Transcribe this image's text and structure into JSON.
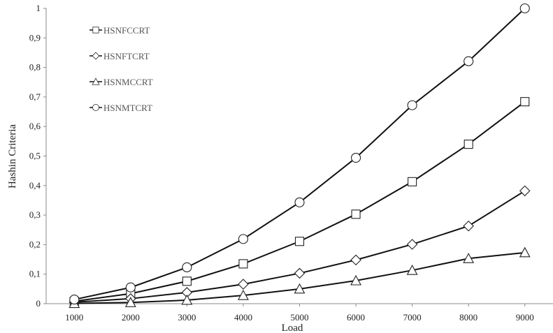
{
  "chart_data": {
    "type": "line",
    "xlabel": "Load",
    "ylabel": "Hashin Criteria",
    "x": [
      1000,
      2000,
      3000,
      4000,
      5000,
      6000,
      7000,
      8000,
      9000
    ],
    "xlim": [
      500,
      9500
    ],
    "ylim": [
      0,
      1
    ],
    "xticks": [
      "1000",
      "2000",
      "3000",
      "4000",
      "5000",
      "6000",
      "7000",
      "8000",
      "9000"
    ],
    "yticks": [
      "0",
      "0,1",
      "0,2",
      "0,3",
      "0,4",
      "0,5",
      "0,6",
      "0,7",
      "0,8",
      "0,9",
      "1"
    ],
    "legend_position": "top-left",
    "grid": false,
    "line_color": "#111111",
    "series": [
      {
        "name": "HSNFCCRT",
        "marker": "square",
        "values": [
          0.008,
          0.034,
          0.076,
          0.135,
          0.211,
          0.303,
          0.413,
          0.54,
          0.684
        ]
      },
      {
        "name": "HSNFTCRT",
        "marker": "diamond",
        "values": [
          0.005,
          0.017,
          0.038,
          0.066,
          0.103,
          0.148,
          0.201,
          0.263,
          0.382
        ]
      },
      {
        "name": "HSNMCCRT",
        "marker": "triangle",
        "values": [
          0.001,
          0.004,
          0.012,
          0.028,
          0.05,
          0.078,
          0.113,
          0.153,
          0.173
        ]
      },
      {
        "name": "HSNMTCRT",
        "marker": "circle",
        "values": [
          0.014,
          0.055,
          0.123,
          0.219,
          0.343,
          0.494,
          0.672,
          0.821,
          1.0
        ]
      }
    ]
  }
}
